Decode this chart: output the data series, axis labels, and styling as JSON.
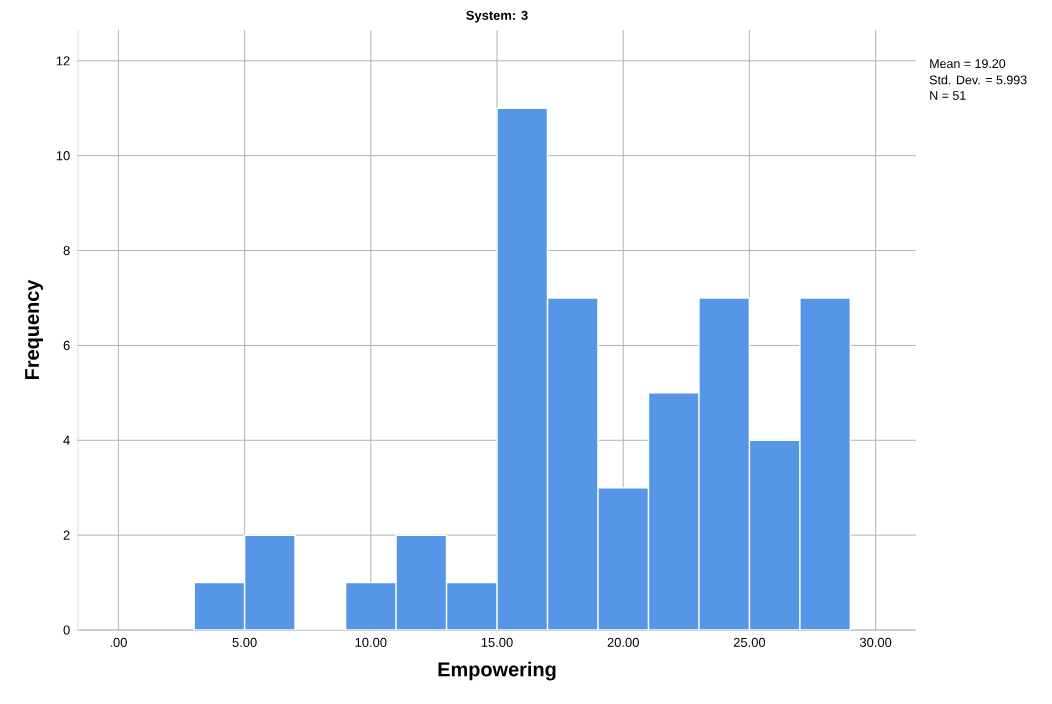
{
  "chart_data": {
    "type": "histogram",
    "title": "System: 3",
    "xlabel": "Empowering",
    "ylabel": "Frequency",
    "bins": [
      3,
      5,
      7,
      9,
      11,
      13,
      15,
      17,
      19,
      21,
      23,
      25,
      27,
      29
    ],
    "values": [
      1,
      2,
      0,
      1,
      2,
      1,
      11,
      7,
      3,
      5,
      7,
      4,
      7
    ],
    "color": "#5596e6",
    "xlim": [
      -1.6,
      31.6
    ],
    "ylim": [
      0,
      12.65
    ],
    "xticks": [
      {
        "value": 0,
        "label": ".00"
      },
      {
        "value": 5,
        "label": "5.00"
      },
      {
        "value": 10,
        "label": "10.00"
      },
      {
        "value": 15,
        "label": "15.00"
      },
      {
        "value": 20,
        "label": "20.00"
      },
      {
        "value": 25,
        "label": "25.00"
      },
      {
        "value": 30,
        "label": "30.00"
      }
    ],
    "yticks": [
      0,
      2,
      4,
      6,
      8,
      10,
      12
    ],
    "grid": true,
    "annotations": [
      "Mean = 19.20",
      "Std. Dev. = 5.993",
      "N = 51"
    ]
  }
}
